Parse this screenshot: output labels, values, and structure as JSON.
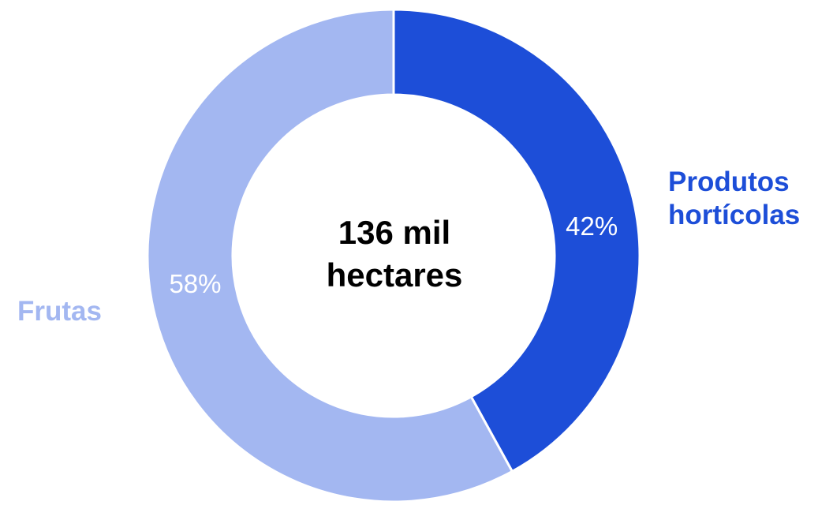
{
  "chart_data": {
    "type": "pie",
    "subtype": "donut",
    "total_label_line1": "136 mil",
    "total_label_line2": "hectares",
    "slices": [
      {
        "name_line1": "Produtos",
        "name_line2": "hortícolas",
        "value": 42,
        "label": "42%",
        "color": "#1d4ed8"
      },
      {
        "name_line1": "Frutas",
        "name_line2": "",
        "value": 58,
        "label": "58%",
        "color": "#a3b7f1"
      }
    ],
    "start": "top",
    "direction": "clockwise",
    "legend": "none"
  }
}
